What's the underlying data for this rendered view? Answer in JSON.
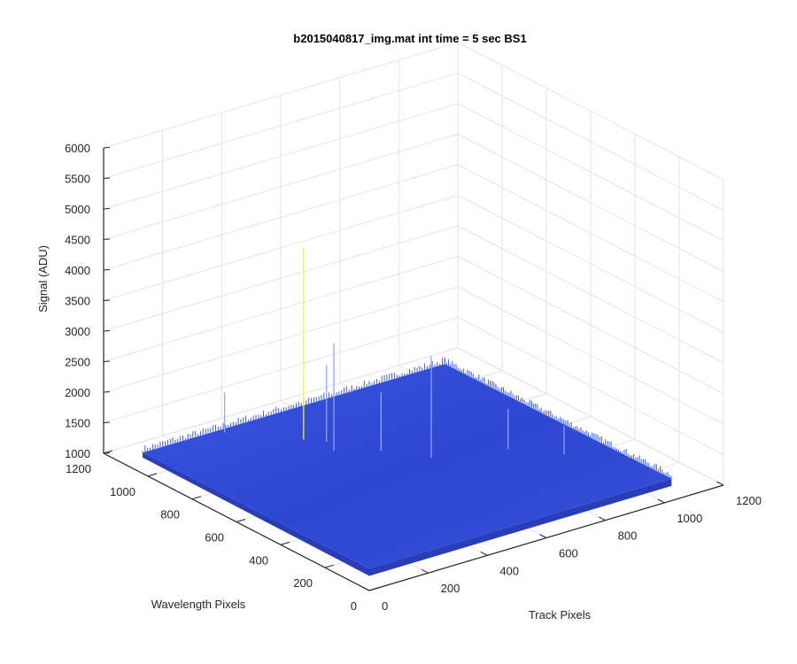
{
  "chart_data": {
    "type": "surface",
    "title": "b2015040817_img.mat int time = 5 sec   BS1",
    "xlabel": "Track Pixels",
    "ylabel": "Wavelength Pixels",
    "zlabel": "Signal (ADU)",
    "xlim": [
      0,
      1200
    ],
    "ylim": [
      0,
      1200
    ],
    "zlim": [
      1000,
      6000
    ],
    "xticks": [
      "0",
      "200",
      "400",
      "600",
      "800",
      "1000",
      "1200"
    ],
    "yticks": [
      "0",
      "200",
      "400",
      "600",
      "800",
      "1000",
      "1200"
    ],
    "zticks": [
      "1000",
      "1500",
      "2000",
      "2500",
      "3000",
      "3500",
      "4000",
      "4500",
      "5000",
      "5500",
      "6000"
    ],
    "grid": true,
    "surface": {
      "x_extent": [
        0,
        1024
      ],
      "y_extent": [
        0,
        1024
      ],
      "baseline_signal": 1300,
      "corner_signal": {
        "x0_y0": 1240,
        "x1024_y0": 1240,
        "x0_y1024": 1260,
        "x1024_y1024": 1230
      },
      "spikes": [
        {
          "x": 400,
          "y": 830,
          "signal": 4480
        },
        {
          "x": 420,
          "y": 720,
          "signal": 3100
        },
        {
          "x": 440,
          "y": 780,
          "signal": 2600
        },
        {
          "x": 600,
          "y": 520,
          "signal": 3000
        },
        {
          "x": 520,
          "y": 640,
          "signal": 2300
        },
        {
          "x": 260,
          "y": 1000,
          "signal": 2000
        },
        {
          "x": 800,
          "y": 440,
          "signal": 2000
        },
        {
          "x": 900,
          "y": 320,
          "signal": 1800
        }
      ]
    },
    "colors": {
      "surface_low": "#2b3fd0",
      "surface_high": "#4a6cf0",
      "spike": "#f4ec5a",
      "grid": "#e3e3e3",
      "axis": "#262626"
    }
  }
}
